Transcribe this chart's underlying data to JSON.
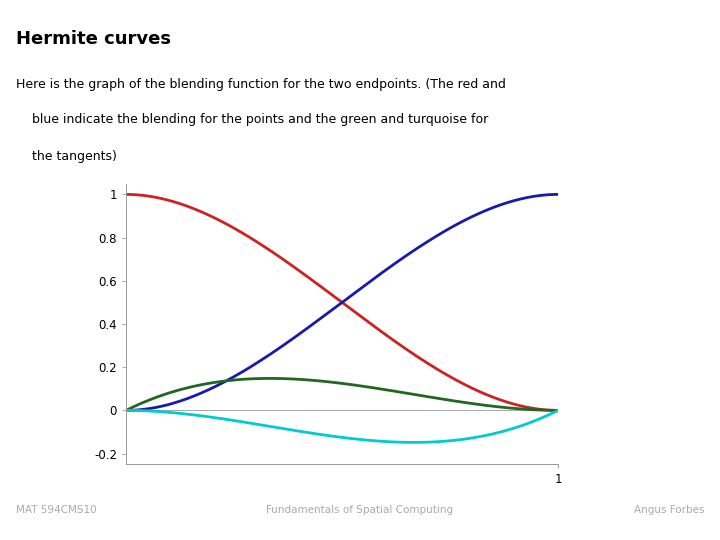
{
  "title": "Hermite curves",
  "subtitle_line1": "Here is the graph of the blending function for the two endpoints. (The red and",
  "subtitle_line2": "    blue indicate the blending for the points and the green and turquoise for",
  "subtitle_line3": "    the tangents)",
  "footer_left": "MAT 594CMS10",
  "footer_center": "Fundamentals of Spatial Computing",
  "footer_right": "Angus Forbes",
  "header_bg": "#8ec8d8",
  "body_bg": "#ffffff",
  "line_colors": {
    "red": "#cc2222",
    "blue": "#1a1aaa",
    "green": "#226622",
    "cyan": "#00cccc"
  },
  "xlim": [
    0,
    1
  ],
  "ylim": [
    -0.25,
    1.05
  ],
  "yticks": [
    1,
    0.8,
    0.6,
    0.4,
    0.2,
    0,
    -0.2
  ],
  "line_width": 2.0
}
